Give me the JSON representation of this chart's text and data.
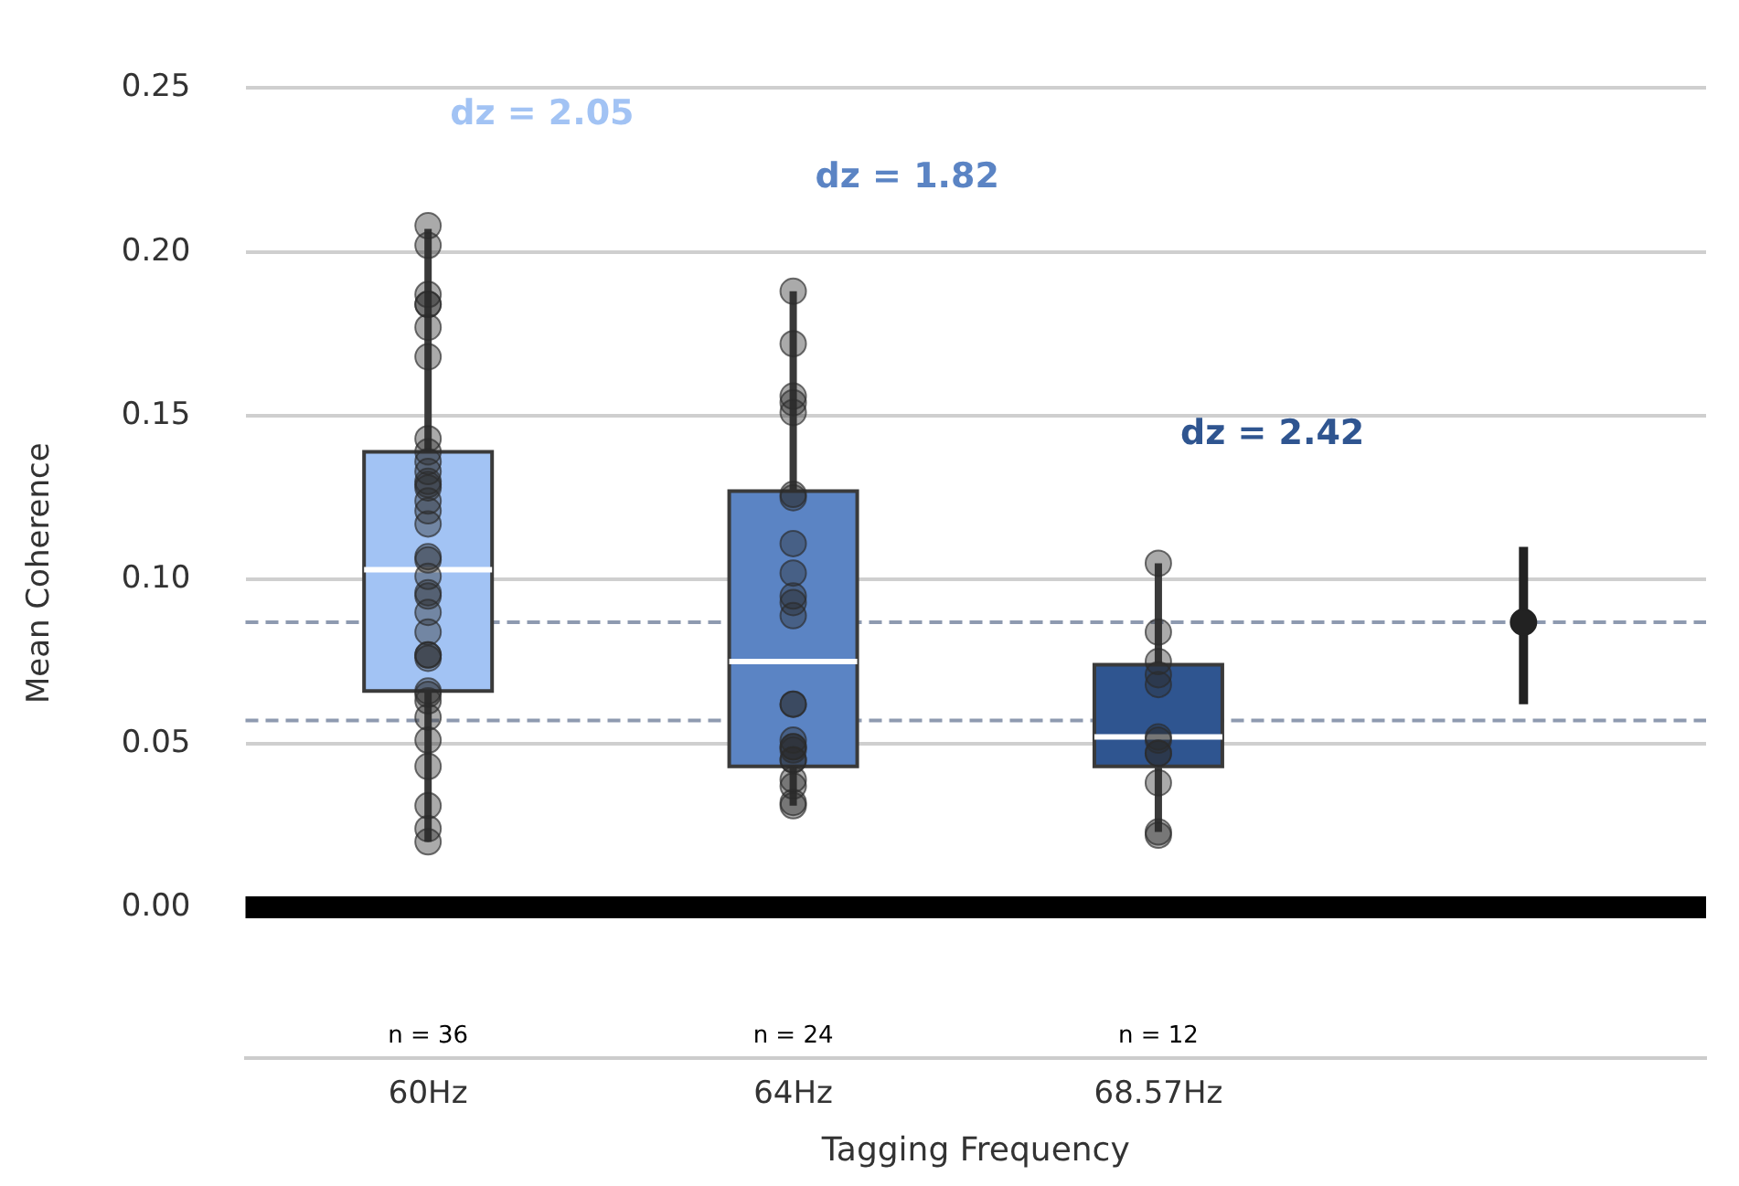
{
  "chart_data": {
    "type": "box",
    "xlabel": "Tagging Frequency",
    "ylabel": "Mean Coherence",
    "categories": [
      "60Hz",
      "64Hz",
      "68.57Hz",
      null
    ],
    "series": [
      {
        "colors": [
          "#a2c3f4",
          "#5b84c4",
          "#2f5590",
          null
        ],
        "boxes": [
          {
            "low": 0.02,
            "q1": 0.066,
            "median": 0.103,
            "q3": 0.139,
            "high": 0.207
          },
          {
            "low": 0.031,
            "q1": 0.043,
            "median": 0.075,
            "q3": 0.127,
            "high": 0.188
          },
          {
            "low": 0.023,
            "q1": 0.043,
            "median": 0.052,
            "q3": 0.074,
            "high": 0.105
          },
          null
        ]
      },
      {
        "type": "scatter",
        "color": "#2b2b2b",
        "x": [
          "60Hz",
          "60Hz",
          "60Hz",
          "60Hz",
          "60Hz",
          "60Hz",
          "60Hz",
          "60Hz",
          "60Hz",
          "60Hz",
          "60Hz",
          "60Hz",
          "60Hz",
          "60Hz",
          "60Hz",
          "60Hz",
          "60Hz",
          "60Hz",
          "60Hz",
          "60Hz",
          "60Hz",
          "60Hz",
          "60Hz",
          "60Hz",
          "60Hz",
          "60Hz",
          "60Hz",
          "60Hz",
          "60Hz",
          "60Hz",
          "60Hz",
          "60Hz",
          "60Hz",
          "60Hz",
          "60Hz",
          "60Hz",
          "64Hz",
          "64Hz",
          "64Hz",
          "64Hz",
          "64Hz",
          "64Hz",
          "64Hz",
          "64Hz",
          "64Hz",
          "64Hz",
          "64Hz",
          "64Hz",
          "64Hz",
          "64Hz",
          "64Hz",
          "64Hz",
          "64Hz",
          "64Hz",
          "64Hz",
          "64Hz",
          "64Hz",
          "64Hz",
          "64Hz",
          "64Hz",
          "68.57Hz",
          "68.57Hz",
          "68.57Hz",
          "68.57Hz",
          "68.57Hz",
          "68.57Hz",
          "68.57Hz",
          "68.57Hz",
          "68.57Hz",
          "68.57Hz",
          "68.57Hz",
          "68.57Hz"
        ],
        "values": [
          0.208,
          0.202,
          0.187,
          0.184,
          0.184,
          0.177,
          0.168,
          0.143,
          0.139,
          0.136,
          0.133,
          0.13,
          0.129,
          0.128,
          0.124,
          0.121,
          0.117,
          0.107,
          0.106,
          0.101,
          0.096,
          0.095,
          0.09,
          0.084,
          0.077,
          0.077,
          0.076,
          0.066,
          0.065,
          0.063,
          0.058,
          0.051,
          0.043,
          0.031,
          0.024,
          0.02,
          0.188,
          0.172,
          0.156,
          0.154,
          0.151,
          0.126,
          0.125,
          0.111,
          0.102,
          0.095,
          0.093,
          0.089,
          0.062,
          0.062,
          0.051,
          0.049,
          0.049,
          0.048,
          0.045,
          0.045,
          0.039,
          0.037,
          0.032,
          0.031,
          0.105,
          0.084,
          0.075,
          0.071,
          0.068,
          0.052,
          0.051,
          0.047,
          0.047,
          0.038,
          0.023,
          0.022
        ]
      },
      {
        "type": "scatter",
        "color": "#222222",
        "values": [
          null,
          null,
          null,
          0.087
        ],
        "errors": [
          null,
          null,
          null,
          [
            0.062,
            0.11
          ]
        ]
      }
    ],
    "ref_lines": [
      {
        "axis": "y",
        "value": 0,
        "color": "#000000",
        "line_style": "solid"
      },
      {
        "axis": "y",
        "value": 0.087,
        "color": "#8e9ab0",
        "line_style": "dashed"
      },
      {
        "axis": "y",
        "value": 0.057,
        "color": "#8e9ab0",
        "line_style": "dashed"
      }
    ],
    "annotations": [
      "dz = 2.05",
      "dz = 1.82",
      "dz = 2.42",
      "n = 36",
      "n = 24",
      "n = 12"
    ],
    "ylim": [
      -0.046,
      0.25
    ],
    "yticks": [
      {
        "value": 0,
        "label": "0.00"
      },
      {
        "value": 0.05,
        "label": "0.05"
      },
      {
        "value": 0.1,
        "label": "0.10"
      },
      {
        "value": 0.15,
        "label": "0.15"
      },
      {
        "value": 0.2,
        "label": "0.20"
      },
      {
        "value": 0.25,
        "label": "0.25"
      }
    ],
    "grid": "y",
    "legend": false,
    "marker": "circle"
  }
}
